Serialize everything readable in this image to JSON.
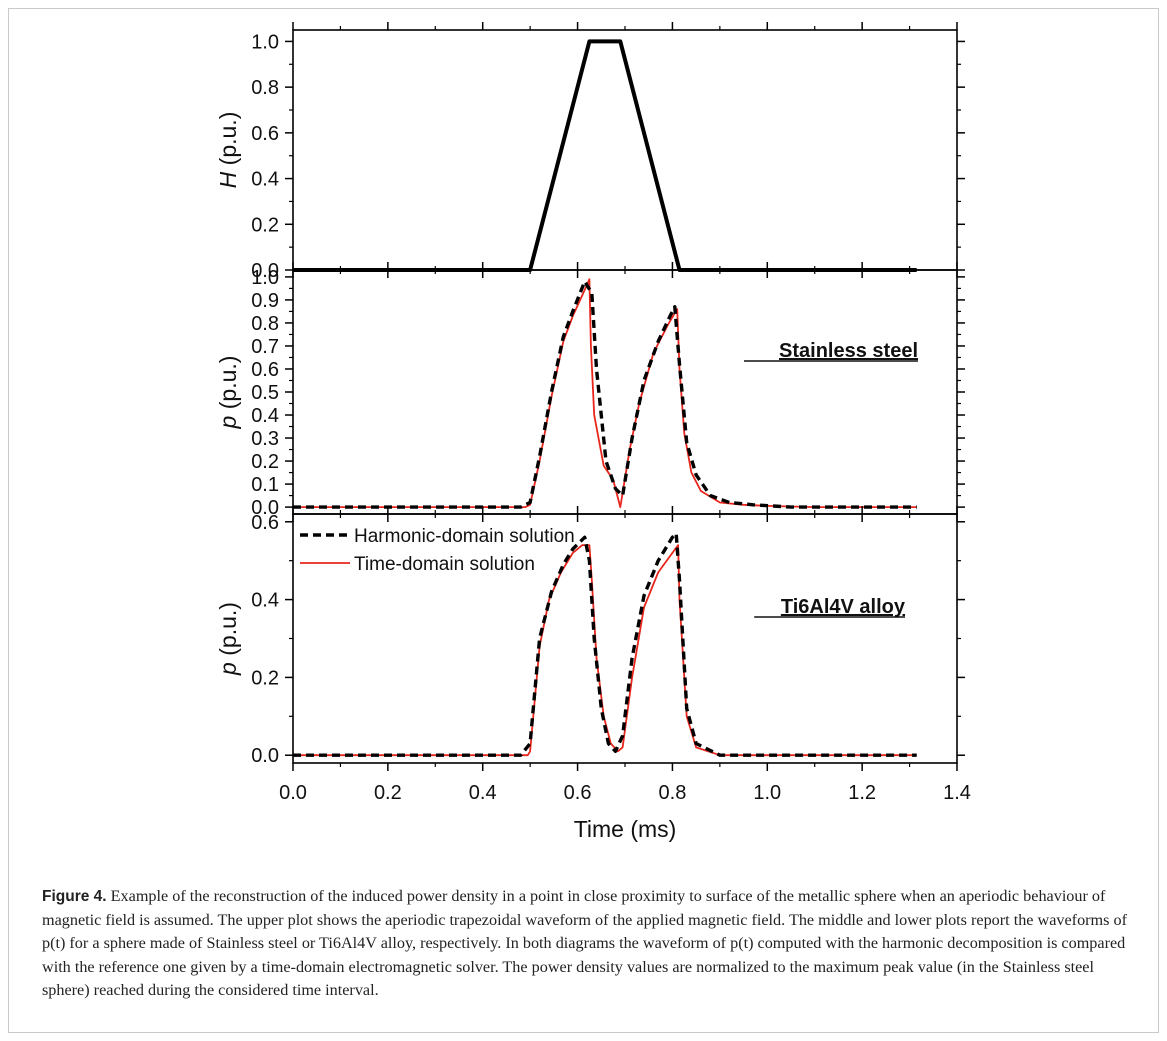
{
  "chart_data": {
    "type": "line",
    "xlabel": "Time (ms)",
    "xlim": [
      0.0,
      1.4
    ],
    "x_ticks": [
      "0.0",
      "0.2",
      "0.4",
      "0.6",
      "0.8",
      "1.0",
      "1.2",
      "1.4"
    ],
    "panels": [
      {
        "ylabel_italic": "H",
        "ylabel_rest": " (p.u.)",
        "ylim": [
          0.0,
          1.05
        ],
        "y_ticks": [
          "0.0",
          "0.2",
          "0.4",
          "0.6",
          "0.8",
          "1.0"
        ],
        "y_tick_values": [
          0.0,
          0.2,
          0.4,
          0.6,
          0.8,
          1.0
        ],
        "series": [
          {
            "style": "solid-black-thick",
            "x": [
              0.0,
              0.5,
              0.625,
              0.69,
              0.815,
              1.315
            ],
            "y": [
              0.0,
              0.0,
              1.0,
              1.0,
              0.0,
              0.0
            ]
          }
        ]
      },
      {
        "ylabel_italic": "p",
        "ylabel_rest": " (p.u.)",
        "ylim": [
          -0.03,
          1.03
        ],
        "y_ticks": [
          "0.0",
          "0.1",
          "0.2",
          "0.3",
          "0.4",
          "0.5",
          "0.6",
          "0.7",
          "0.8",
          "0.9",
          "1.0"
        ],
        "y_tick_values": [
          0.0,
          0.1,
          0.2,
          0.3,
          0.4,
          0.5,
          0.6,
          0.7,
          0.8,
          0.9,
          1.0
        ],
        "annotation": "Stainless steel",
        "series": [
          {
            "name": "Time-domain solution",
            "style": "solid-red",
            "x": [
              0.0,
              0.49,
              0.5,
              0.52,
              0.545,
              0.57,
              0.59,
              0.61,
              0.625,
              0.628,
              0.635,
              0.655,
              0.675,
              0.69,
              0.71,
              0.73,
              0.76,
              0.79,
              0.81,
              0.815,
              0.825,
              0.84,
              0.86,
              0.9,
              0.95,
              1.0,
              1.1,
              1.2,
              1.315
            ],
            "y": [
              0.0,
              0.0,
              0.01,
              0.2,
              0.48,
              0.72,
              0.83,
              0.92,
              0.99,
              0.7,
              0.4,
              0.18,
              0.12,
              0.0,
              0.25,
              0.45,
              0.67,
              0.79,
              0.86,
              0.6,
              0.32,
              0.15,
              0.07,
              0.02,
              0.01,
              0.005,
              0.0,
              0.0,
              0.0
            ]
          },
          {
            "name": "Harmonic-domain solution",
            "style": "dashed-black",
            "x": [
              0.0,
              0.48,
              0.5,
              0.52,
              0.545,
              0.57,
              0.59,
              0.615,
              0.63,
              0.64,
              0.66,
              0.68,
              0.695,
              0.715,
              0.74,
              0.77,
              0.795,
              0.805,
              0.815,
              0.83,
              0.85,
              0.88,
              0.92,
              0.97,
              1.05,
              1.15,
              1.315
            ],
            "y": [
              0.0,
              0.0,
              0.02,
              0.22,
              0.5,
              0.74,
              0.85,
              0.98,
              0.93,
              0.6,
              0.2,
              0.08,
              0.05,
              0.3,
              0.55,
              0.72,
              0.83,
              0.87,
              0.62,
              0.28,
              0.14,
              0.05,
              0.02,
              0.01,
              0.0,
              0.0,
              0.0
            ]
          }
        ]
      },
      {
        "ylabel_italic": "p",
        "ylabel_rest": " (p.u.)",
        "ylim": [
          -0.02,
          0.62
        ],
        "y_ticks": [
          "0.0",
          "0.2",
          "0.4",
          "0.6"
        ],
        "y_tick_values": [
          0.0,
          0.2,
          0.4,
          0.6
        ],
        "annotation": "Ti6Al4V alloy",
        "series": [
          {
            "name": "Time-domain solution",
            "style": "solid-red",
            "x": [
              0.0,
              0.495,
              0.5,
              0.52,
              0.54,
              0.565,
              0.59,
              0.61,
              0.625,
              0.63,
              0.64,
              0.655,
              0.67,
              0.685,
              0.695,
              0.715,
              0.74,
              0.77,
              0.8,
              0.812,
              0.815,
              0.83,
              0.85,
              0.9,
              0.95,
              1.1,
              1.315
            ],
            "y": [
              0.0,
              0.0,
              0.01,
              0.28,
              0.4,
              0.47,
              0.52,
              0.54,
              0.54,
              0.45,
              0.25,
              0.1,
              0.03,
              0.01,
              0.02,
              0.2,
              0.38,
              0.47,
              0.52,
              0.54,
              0.4,
              0.1,
              0.02,
              0.0,
              0.0,
              0.0,
              0.0
            ]
          },
          {
            "name": "Harmonic-domain solution",
            "style": "dashed-black",
            "x": [
              0.0,
              0.48,
              0.5,
              0.52,
              0.545,
              0.57,
              0.59,
              0.615,
              0.625,
              0.635,
              0.65,
              0.665,
              0.68,
              0.695,
              0.715,
              0.74,
              0.77,
              0.8,
              0.808,
              0.815,
              0.83,
              0.85,
              0.9,
              0.95,
              1.05,
              1.315
            ],
            "y": [
              0.0,
              0.0,
              0.03,
              0.3,
              0.42,
              0.49,
              0.53,
              0.56,
              0.5,
              0.3,
              0.12,
              0.03,
              0.01,
              0.05,
              0.25,
              0.41,
              0.5,
              0.56,
              0.57,
              0.45,
              0.12,
              0.03,
              0.0,
              0.0,
              0.0,
              0.0
            ]
          }
        ]
      }
    ],
    "legend": {
      "panel": 2,
      "placement": "top-left",
      "entries": [
        "Harmonic-domain solution",
        "Time-domain solution"
      ]
    }
  },
  "caption": {
    "label": "Figure 4.",
    "text": "Example of the reconstruction of the induced power density in a point in close proximity to surface of the metallic sphere when an aperiodic behaviour of magnetic field is assumed. The upper plot shows the aperiodic trapezoidal waveform of the applied magnetic field. The middle and lower plots report the waveforms of p(t) for a sphere made of Stainless steel or Ti6Al4V alloy, respectively. In both diagrams the waveform of p(t) computed with the harmonic decomposition is compared with the reference one given by a time-domain electromagnetic solver. The power density values are normalized to the maximum peak value (in the Stainless steel sphere) reached during the considered time interval."
  },
  "colors": {
    "time_domain": "#e8261c",
    "harmonic": "#000000",
    "axes": "#000000"
  }
}
